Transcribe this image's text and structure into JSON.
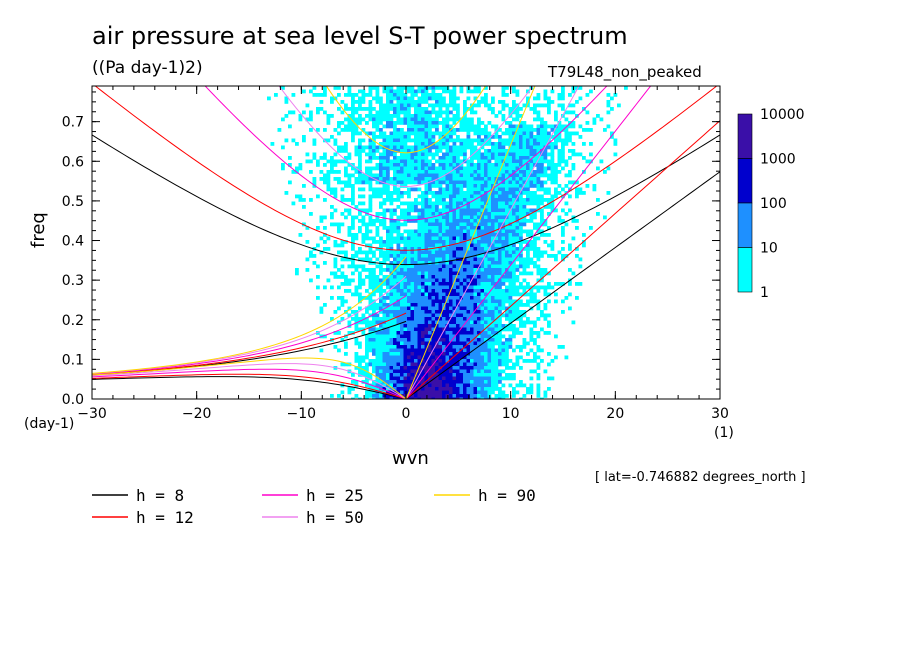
{
  "chart_data": {
    "type": "heatmap",
    "title": "air pressure at sea level S-T power spectrum",
    "units": "((Pa day-1)2)",
    "dataset": "T79L48_non_peaked",
    "xlabel": "wvn",
    "ylabel": "freq",
    "x_unit": "(1)",
    "y_unit": "(day-1)",
    "xlim": [
      -30,
      30
    ],
    "ylim": [
      0,
      0.79
    ],
    "xticks": [
      -30,
      -20,
      -10,
      0,
      10,
      20,
      30
    ],
    "yticks": [
      0.0,
      0.1,
      0.2,
      0.3,
      0.4,
      0.5,
      0.6,
      0.7
    ],
    "ytick_labels": [
      "0.0",
      "0.1",
      "0.2",
      "0.3",
      "0.4",
      "0.5",
      "0.6",
      "0.7"
    ],
    "colorbar": {
      "levels": [
        "1",
        "10",
        "100",
        "1000",
        "10000"
      ],
      "colors": [
        "#00ffff",
        "#1e90ff",
        "#0000cd",
        "#3a0fa8"
      ]
    },
    "dispersion_curves": [
      {
        "label": "h =  8",
        "h": 8,
        "color": "#000000"
      },
      {
        "label": "h = 12",
        "h": 12,
        "color": "#ff0000"
      },
      {
        "label": "h = 25",
        "h": 25,
        "color": "#ff00cc"
      },
      {
        "label": "h = 50",
        "h": 50,
        "color": "#ee82ee"
      },
      {
        "label": "h = 90",
        "h": 90,
        "color": "#ffd700"
      }
    ],
    "note": "[ lat=-0.746882 degrees_north ]"
  }
}
